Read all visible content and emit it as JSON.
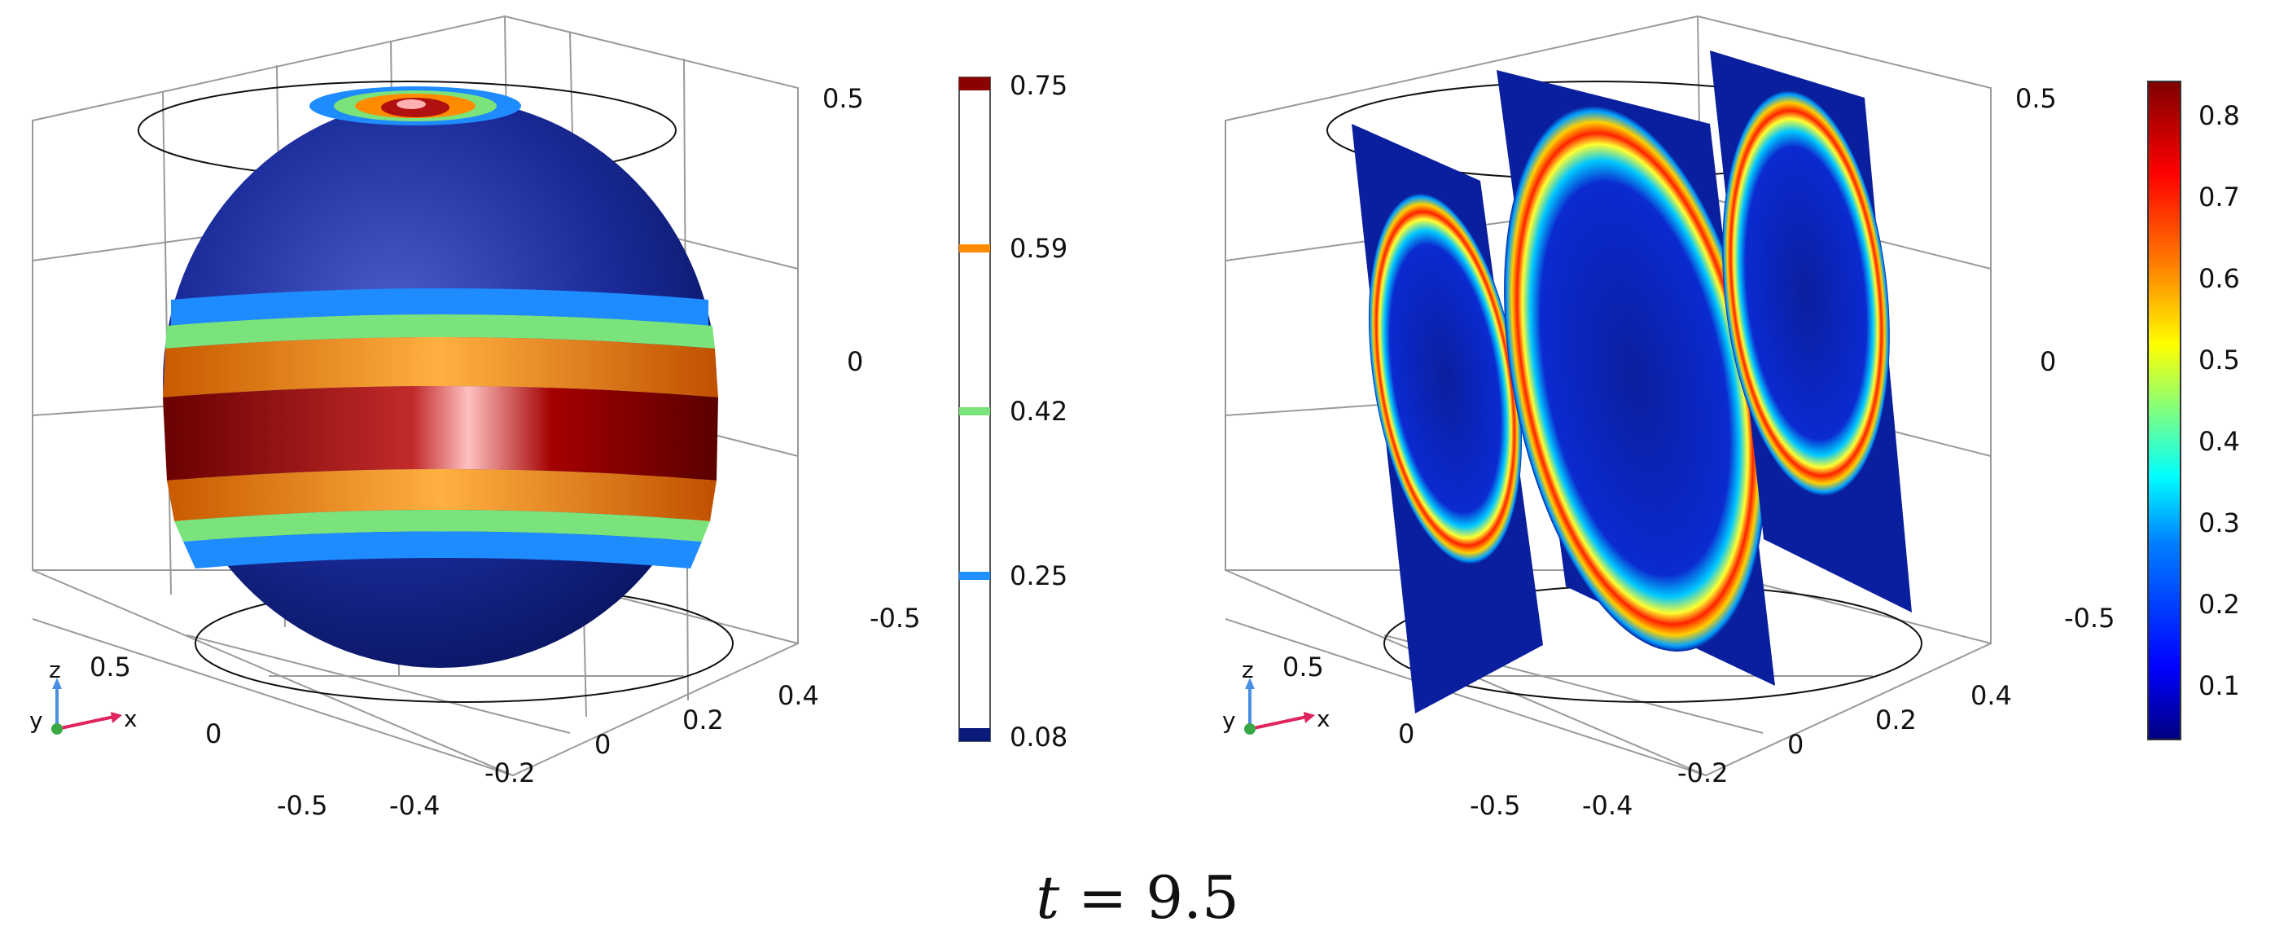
{
  "caption": {
    "variable": "t",
    "equals": "=",
    "value": "9.5"
  },
  "panels": [
    {
      "id": "isosurface",
      "z_ticks": [
        "0.5",
        "0",
        "-0.5"
      ],
      "x_ticks": [
        "-0.4",
        "-0.2",
        "0",
        "0.2",
        "0.4"
      ],
      "y_ticks": [
        "0.5",
        "0",
        "-0.5"
      ],
      "axes_labels": {
        "z": "z",
        "y": "y",
        "x": "x"
      },
      "colorbar_ticks": [
        "0.75",
        "0.59",
        "0.42",
        "0.25",
        "0.08"
      ],
      "isosurface_levels": [
        {
          "value": 0.75,
          "color": "#8b0000"
        },
        {
          "value": 0.59,
          "color": "#ff8c00"
        },
        {
          "value": 0.42,
          "color": "#7be37b"
        },
        {
          "value": 0.25,
          "color": "#1e90ff"
        },
        {
          "value": 0.08,
          "color": "#0a1a7a"
        }
      ]
    },
    {
      "id": "slices",
      "z_ticks": [
        "0.5",
        "0",
        "-0.5"
      ],
      "x_ticks": [
        "-0.4",
        "-0.2",
        "0",
        "0.2",
        "0.4"
      ],
      "y_ticks": [
        "0.5",
        "0",
        "-0.5"
      ],
      "axes_labels": {
        "z": "z",
        "y": "y",
        "x": "x"
      },
      "colorbar_ticks": [
        "0.8",
        "0.7",
        "0.6",
        "0.5",
        "0.4",
        "0.3",
        "0.2",
        "0.1"
      ],
      "colorscale": [
        "#00007f",
        "#0000ff",
        "#0080ff",
        "#00ffff",
        "#80ff80",
        "#ffff00",
        "#ff8000",
        "#ff0000",
        "#7f0000"
      ]
    }
  ]
}
